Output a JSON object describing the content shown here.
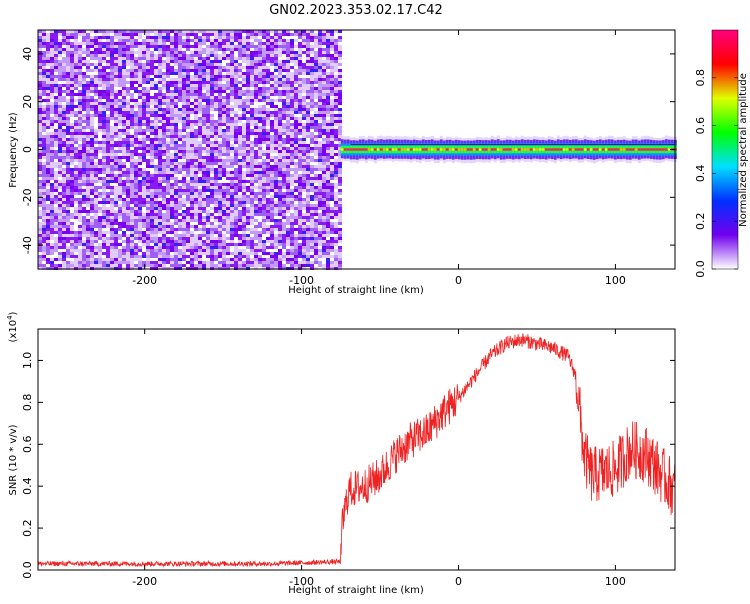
{
  "title": "GN02.2023.353.02.17.C42",
  "chart_data": [
    {
      "type": "heatmap",
      "xlabel": "Height of straight line (km)",
      "ylabel": "Frequency (Hz)",
      "xlim": [
        -268,
        138
      ],
      "ylim": [
        -50,
        50
      ],
      "xticks": [
        -200,
        -100,
        0,
        100
      ],
      "yticks": [
        -40,
        -20,
        0,
        20,
        40
      ],
      "noise_region_x": [
        -268,
        -75
      ],
      "signal_region_x": [
        -75,
        138
      ],
      "signal_frequency": 0,
      "signal_bandwidth": 4,
      "colorbar": {
        "label": "Normalized spectral amplitude",
        "range": [
          0,
          1
        ],
        "ticks": [
          0.0,
          0.2,
          0.4,
          0.6,
          0.8
        ],
        "colors": [
          "#ffffff",
          "#7000ee",
          "#0030ff",
          "#00e0ff",
          "#00ff00",
          "#e0ff00",
          "#ff0000",
          "#ff0080"
        ]
      }
    },
    {
      "type": "line",
      "xlabel": "Height of straight line (km)",
      "ylabel": "SNR (10 * v/v)",
      "scale_label": "(x10",
      "scale_exponent": "4",
      "scale_close": ")",
      "xlim": [
        -268,
        138
      ],
      "ylim": [
        0,
        1.15
      ],
      "xticks": [
        -200,
        -100,
        0,
        100
      ],
      "yticks": [
        0.0,
        0.2,
        0.4,
        0.6,
        0.8,
        1.0
      ],
      "line_color": "#ee2222",
      "series": [
        {
          "x": [
            -268,
            -200,
            -120,
            -75,
            -74,
            -70,
            -60,
            -50,
            -40,
            -30,
            -20,
            -10,
            0,
            10,
            20,
            30,
            40,
            50,
            60,
            70,
            75,
            78,
            80,
            85,
            90,
            100,
            110,
            120,
            130,
            138
          ],
          "values": [
            0.03,
            0.03,
            0.03,
            0.04,
            0.22,
            0.38,
            0.4,
            0.45,
            0.55,
            0.62,
            0.66,
            0.75,
            0.82,
            0.92,
            1.02,
            1.08,
            1.1,
            1.08,
            1.06,
            1.02,
            0.92,
            0.7,
            0.55,
            0.45,
            0.46,
            0.48,
            0.58,
            0.55,
            0.45,
            0.38
          ]
        }
      ]
    }
  ]
}
